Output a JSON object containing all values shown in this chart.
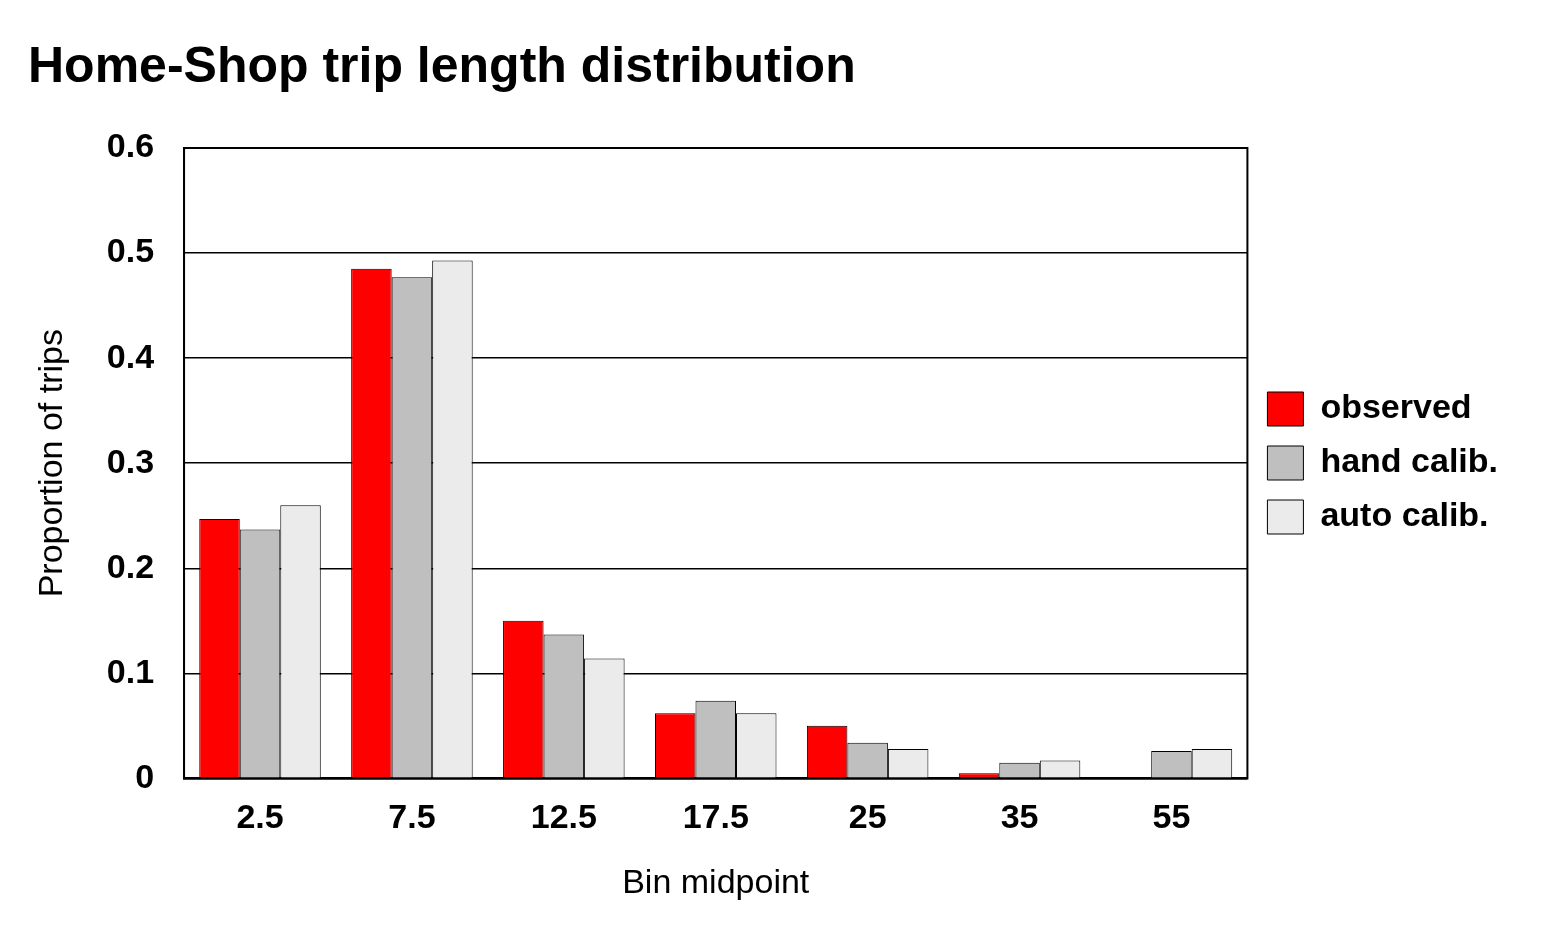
{
  "chart_data": {
    "type": "bar",
    "title": "Home-Shop trip length distribution",
    "xlabel": "Bin midpoint",
    "ylabel": "Proportion of trips",
    "categories": [
      "2.5",
      "7.5",
      "12.5",
      "17.5",
      "25",
      "35",
      "55"
    ],
    "series": [
      {
        "name": "observed",
        "color": "#ff0000",
        "values": [
          0.247,
          0.485,
          0.15,
          0.062,
          0.05,
          0.005,
          0
        ]
      },
      {
        "name": "hand calib.",
        "color": "#bfbfbf",
        "values": [
          0.237,
          0.477,
          0.137,
          0.074,
          0.034,
          0.015,
          0.026
        ]
      },
      {
        "name": "auto calib.",
        "color": "#ebebeb",
        "values": [
          0.26,
          0.493,
          0.114,
          0.062,
          0.028,
          0.017,
          0.028
        ]
      }
    ],
    "ylim": [
      0,
      0.6
    ],
    "yticks": [
      0,
      0.1,
      0.2,
      0.3,
      0.4,
      0.5,
      0.6
    ],
    "grid": "y",
    "legend": "right"
  }
}
